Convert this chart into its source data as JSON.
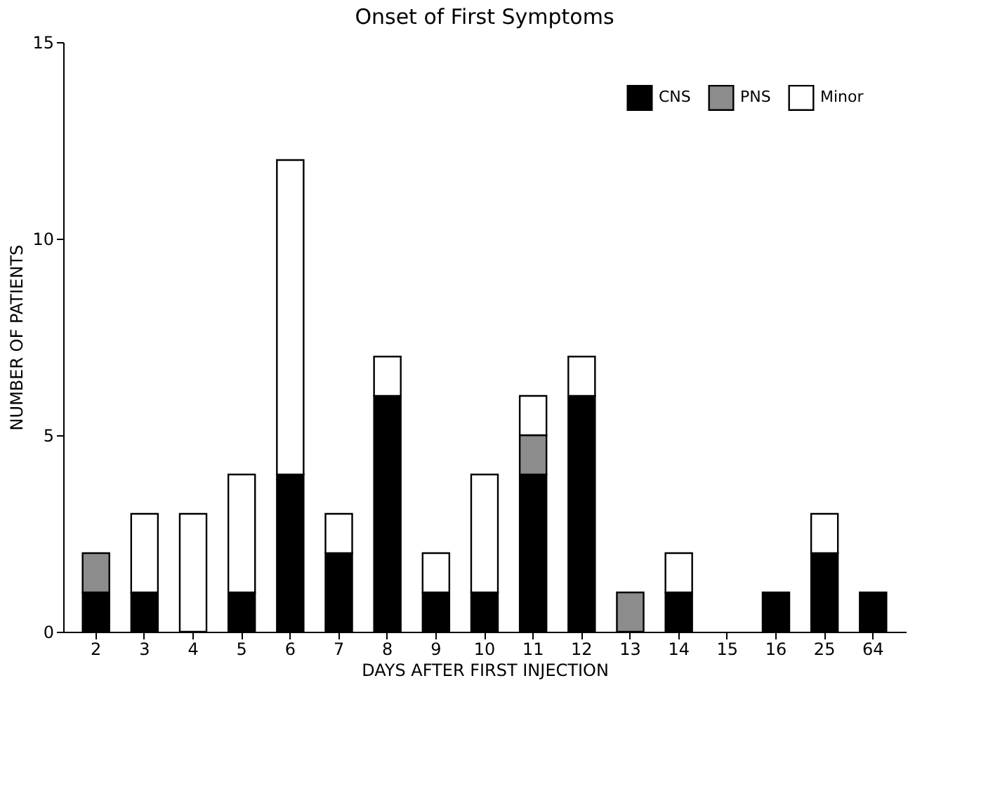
{
  "chart_data": {
    "type": "bar",
    "title": "Onset of First Symptoms",
    "xlabel": "DAYS AFTER FIRST INJECTION",
    "ylabel": "NUMBER OF PATIENTS",
    "categories": [
      "2",
      "3",
      "4",
      "5",
      "6",
      "7",
      "8",
      "9",
      "10",
      "11",
      "12",
      "13",
      "14",
      "15",
      "16",
      "25",
      "64"
    ],
    "stacked": true,
    "ylim": [
      0,
      15
    ],
    "yticks": [
      0,
      5,
      10,
      15
    ],
    "grid": false,
    "legend": "top right",
    "series": [
      {
        "name": "CNS",
        "color": "#000000",
        "values": [
          1,
          1,
          null,
          1,
          4,
          2,
          6,
          1,
          1,
          4,
          6,
          null,
          1,
          null,
          1,
          2,
          1
        ]
      },
      {
        "name": "PNS",
        "color": "#8c8c8c",
        "values": [
          1,
          null,
          null,
          null,
          null,
          null,
          null,
          null,
          null,
          1,
          null,
          1,
          null,
          null,
          null,
          null,
          null
        ]
      },
      {
        "name": "Minor",
        "color": "#ffffff",
        "values": [
          null,
          2,
          3,
          3,
          8,
          1,
          1,
          1,
          3,
          1,
          1,
          null,
          1,
          null,
          null,
          1,
          null
        ]
      }
    ]
  }
}
